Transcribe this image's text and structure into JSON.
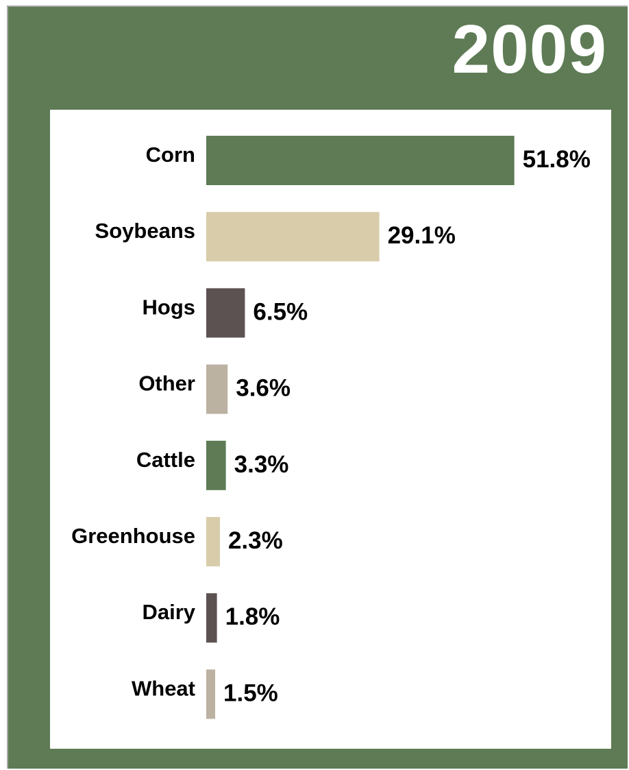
{
  "colors": {
    "frame_bg": "#5e7b55",
    "frame_border": "#a8a8a8",
    "panel_bg": "#ffffff",
    "year_text": "#ffffff",
    "label_text": "#000000"
  },
  "header": {
    "year": "2009"
  },
  "chart_data": {
    "type": "bar",
    "orientation": "horizontal",
    "title": "2009",
    "categories": [
      "Corn",
      "Soybeans",
      "Hogs",
      "Other",
      "Cattle",
      "Greenhouse",
      "Dairy",
      "Wheat"
    ],
    "values": [
      51.8,
      29.1,
      6.5,
      3.6,
      3.3,
      2.3,
      1.8,
      1.5
    ],
    "value_labels": [
      "51.8%",
      "29.1%",
      "6.5%",
      "3.6%",
      "3.3%",
      "2.3%",
      "1.8%",
      "1.5%"
    ],
    "bar_colors": [
      "#5e7b55",
      "#d8ccaa",
      "#5d5252",
      "#bcb2a2",
      "#5e7b55",
      "#d8ccaa",
      "#5d5252",
      "#bcb2a2"
    ],
    "unit": "%",
    "xlim": [
      0,
      52
    ],
    "grid": false,
    "legend": "none"
  }
}
